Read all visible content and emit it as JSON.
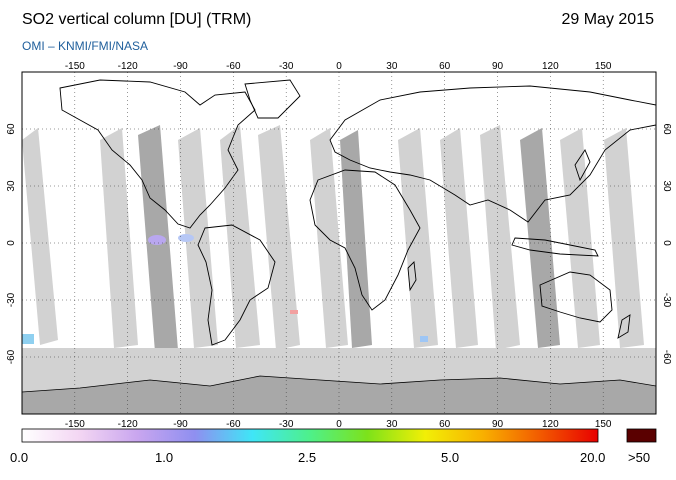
{
  "header": {
    "title": "SO2 vertical column [DU] (TRM)",
    "date": "29 May 2015",
    "source": "OMI  –  KNMI/FMI/NASA"
  },
  "map": {
    "lon_ticks": [
      "-150",
      "-120",
      "-90",
      "-60",
      "-30",
      "0",
      "30",
      "60",
      "90",
      "120",
      "150"
    ],
    "lat_ticks": [
      "60",
      "30",
      "0",
      "-30",
      "-60"
    ],
    "colors": {
      "ocean_no_data": "#d2d2d2",
      "swath_gap_dark": "#a8a8a8",
      "land_outline": "#000000",
      "grid": "#333333",
      "valid_data": "#ffffff"
    }
  },
  "colorbar": {
    "labels": [
      "0.0",
      "1.0",
      "2.5",
      "5.0",
      "20.0"
    ],
    "overflow_label": ">50",
    "overflow_color": "#5a0000",
    "stops": [
      "#ffffff",
      "#f3d6f3",
      "#c9a6ef",
      "#8f8ff0",
      "#3fe6f7",
      "#4ef08a",
      "#7de21a",
      "#f2ef06",
      "#f8b000",
      "#f25a00",
      "#e80000"
    ]
  }
}
